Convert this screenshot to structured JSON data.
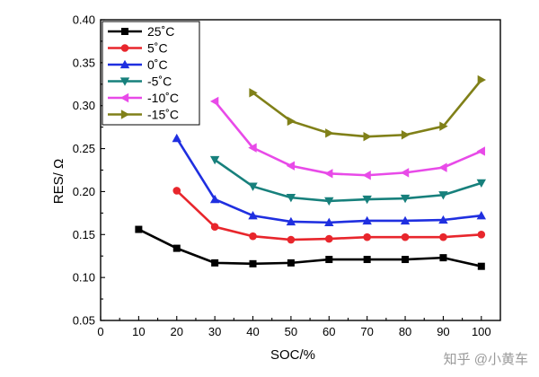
{
  "chart_data": {
    "type": "line",
    "title": "",
    "xlabel": "SOC/%",
    "ylabel": "RES/ Ω",
    "xlim": [
      0,
      105
    ],
    "ylim": [
      0.05,
      0.4
    ],
    "xticks": [
      0,
      10,
      20,
      30,
      40,
      50,
      60,
      70,
      80,
      90,
      100
    ],
    "yticks": [
      0.05,
      0.1,
      0.15,
      0.2,
      0.25,
      0.3,
      0.35,
      0.4
    ],
    "ytick_labels": [
      "0.05",
      "0.10",
      "0.15",
      "0.20",
      "0.25",
      "0.30",
      "0.35",
      "0.40"
    ],
    "legend_position": "top-left",
    "grid": false,
    "series": [
      {
        "name": "25˚C",
        "color": "#000000",
        "marker": "square",
        "x": [
          10,
          20,
          30,
          40,
          50,
          60,
          70,
          80,
          90,
          100
        ],
        "y": [
          0.156,
          0.134,
          0.117,
          0.116,
          0.117,
          0.121,
          0.121,
          0.121,
          0.123,
          0.113
        ]
      },
      {
        "name": "5˚C",
        "color": "#e8262c",
        "marker": "circle",
        "x": [
          20,
          30,
          40,
          50,
          60,
          70,
          80,
          90,
          100
        ],
        "y": [
          0.201,
          0.159,
          0.148,
          0.144,
          0.145,
          0.147,
          0.147,
          0.147,
          0.15
        ]
      },
      {
        "name": "0˚C",
        "color": "#1f2fe0",
        "marker": "triangle-up",
        "x": [
          20,
          30,
          40,
          50,
          60,
          70,
          80,
          90,
          100
        ],
        "y": [
          0.262,
          0.191,
          0.172,
          0.165,
          0.164,
          0.166,
          0.166,
          0.167,
          0.172
        ]
      },
      {
        "name": "-5˚C",
        "color": "#17807c",
        "marker": "triangle-down",
        "x": [
          30,
          40,
          50,
          60,
          70,
          80,
          90,
          100
        ],
        "y": [
          0.237,
          0.206,
          0.193,
          0.189,
          0.191,
          0.192,
          0.196,
          0.21
        ]
      },
      {
        "name": "-10˚C",
        "color": "#e84ae8",
        "marker": "triangle-left",
        "x": [
          30,
          40,
          50,
          60,
          70,
          80,
          90,
          100
        ],
        "y": [
          0.305,
          0.251,
          0.23,
          0.221,
          0.219,
          0.222,
          0.228,
          0.247
        ]
      },
      {
        "name": "-15˚C",
        "color": "#808018",
        "marker": "triangle-right",
        "x": [
          40,
          50,
          60,
          70,
          80,
          90,
          100
        ],
        "y": [
          0.315,
          0.282,
          0.268,
          0.264,
          0.266,
          0.276,
          0.33
        ]
      }
    ]
  },
  "watermark": "知乎 @小黄车"
}
